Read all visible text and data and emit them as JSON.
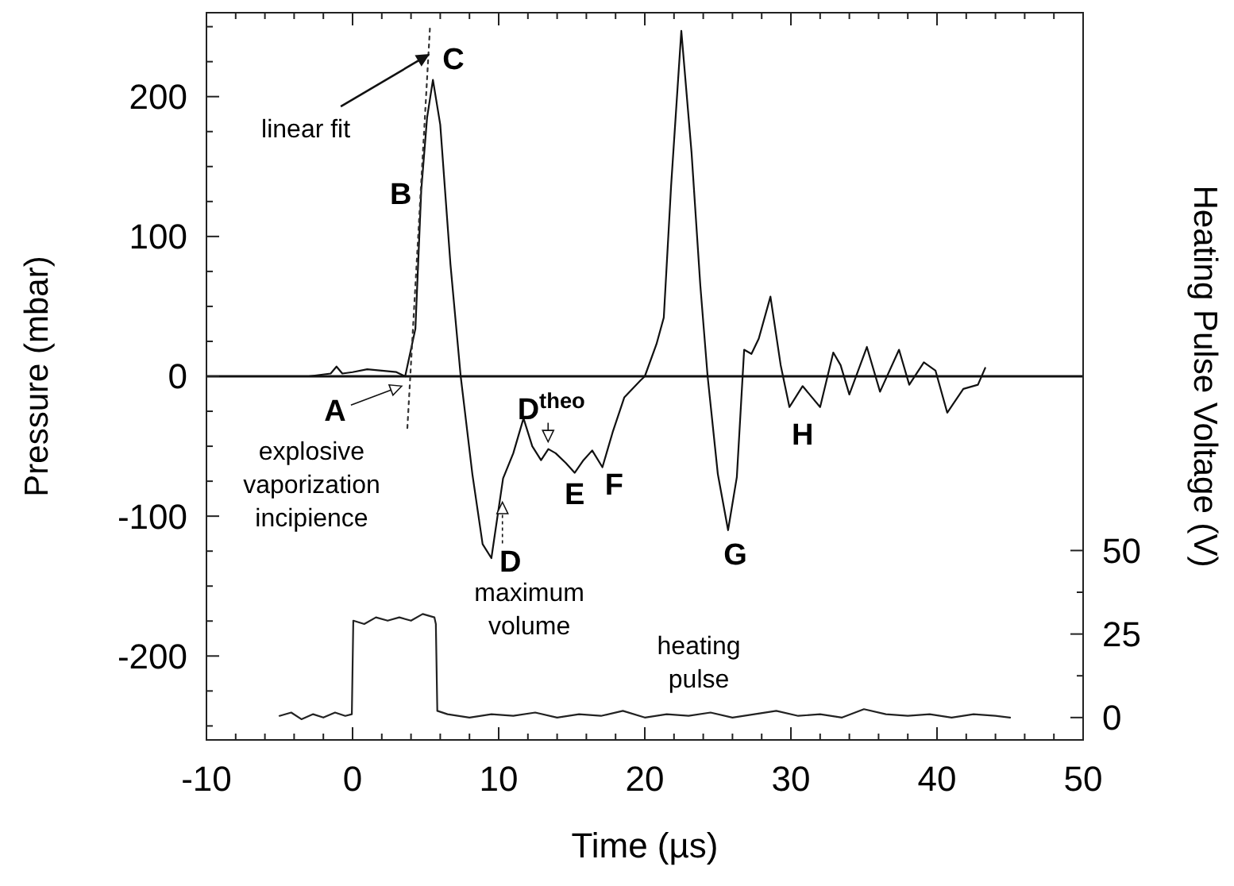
{
  "chart_data": {
    "type": "line",
    "xlabel": "Time (µs)",
    "ylabel": "Pressure (mbar)",
    "y2label": "Heating Pulse Voltage (V)",
    "xlim": [
      -10,
      50
    ],
    "xticks": [
      -10,
      {
        "value": -8,
        "label": null
      },
      {
        "value": -6,
        "label": null
      },
      {
        "value": -4,
        "label": null
      },
      {
        "value": -2,
        "label": null
      },
      0,
      {
        "value": 2,
        "label": null
      },
      {
        "value": 4,
        "label": null
      },
      {
        "value": 6,
        "label": null
      },
      {
        "value": 8,
        "label": null
      },
      10,
      {
        "value": 12,
        "label": null
      },
      {
        "value": 14,
        "label": null
      },
      {
        "value": 16,
        "label": null
      },
      {
        "value": 18,
        "label": null
      },
      20,
      {
        "value": 22,
        "label": null
      },
      {
        "value": 24,
        "label": null
      },
      {
        "value": 26,
        "label": null
      },
      {
        "value": 28,
        "label": null
      },
      30,
      {
        "value": 32,
        "label": null
      },
      {
        "value": 34,
        "label": null
      },
      {
        "value": 36,
        "label": null
      },
      {
        "value": 38,
        "label": null
      },
      40,
      {
        "value": 42,
        "label": null
      },
      {
        "value": 44,
        "label": null
      },
      {
        "value": 46,
        "label": null
      },
      {
        "value": 48,
        "label": null
      },
      50
    ],
    "ylim": [
      -260,
      260
    ],
    "yticks": [
      {
        "value": -250,
        "label": null
      },
      {
        "value": -225,
        "label": null
      },
      -200,
      {
        "value": -175,
        "label": null
      },
      {
        "value": -150,
        "label": null
      },
      {
        "value": -125,
        "label": null
      },
      -100,
      {
        "value": -75,
        "label": null
      },
      {
        "value": -50,
        "label": null
      },
      {
        "value": -25,
        "label": null
      },
      0,
      {
        "value": 25,
        "label": null
      },
      {
        "value": 50,
        "label": null
      },
      {
        "value": 75,
        "label": null
      },
      100,
      {
        "value": 125,
        "label": null
      },
      {
        "value": 150,
        "label": null
      },
      {
        "value": 175,
        "label": null
      },
      200,
      {
        "value": 225,
        "label": null
      },
      {
        "value": 250,
        "label": null
      }
    ],
    "y2lim": [
      -6.7,
      211
    ],
    "y2ticks": [
      0,
      {
        "value": 12.5,
        "label": null
      },
      25,
      {
        "value": 37.5,
        "label": null
      },
      50
    ],
    "grid": false,
    "series": [
      {
        "color": "#111111",
        "line_style": "solid",
        "x": [
          -5.1,
          -3,
          -1.5,
          -1.1,
          -0.7,
          0,
          1,
          2,
          3,
          3.6,
          4.3,
          4.7,
          5.1,
          5.5,
          6,
          6.7,
          7.4,
          8.2,
          8.9,
          9.5,
          10.3,
          11,
          11.7,
          12.3,
          12.9,
          13.4,
          13.9,
          14.6,
          15.2,
          15.8,
          16.4,
          17.1,
          17.8,
          18.6,
          19.7,
          20,
          20.8,
          21.3,
          21.8,
          22.5,
          23.2,
          23.8,
          24.3,
          25,
          25.7,
          26.3,
          26.8,
          27.3,
          27.8,
          28.6,
          29.3,
          29.9,
          30.8,
          32,
          32.9,
          33.4,
          34,
          35.2,
          36.1,
          37.4,
          38.1,
          39.1,
          39.9,
          40.7,
          41.8,
          42.8,
          43.3
        ],
        "values": [
          0,
          0,
          2,
          7,
          2,
          3,
          5,
          4,
          3,
          0,
          34,
          133,
          185,
          212,
          180,
          80,
          0,
          -70,
          -120,
          -130,
          -73,
          -55,
          -30,
          -50,
          -60,
          -52,
          -55,
          -62,
          -69,
          -60,
          -53,
          -65,
          -40,
          -15,
          -3,
          0,
          23,
          42,
          136,
          247,
          160,
          65,
          0,
          -70,
          -110,
          -72,
          19,
          16,
          27,
          57,
          8,
          -22,
          -7,
          -22,
          17,
          8,
          -13,
          21,
          -11,
          19,
          -6,
          10,
          4,
          -26,
          -9,
          -6,
          6
        ]
      },
      {
        "color": "#333333",
        "line_style": "dotted",
        "x": [
          3.75,
          5.3
        ],
        "values": [
          -37,
          250
        ]
      },
      {
        "color": "#222222",
        "line_style": "solid",
        "axis": "y2",
        "x": [
          -5,
          -4.2,
          -3.5,
          -2.7,
          -2,
          -1.2,
          -0.5,
          -0.05,
          0.05,
          0.8,
          1.6,
          2.4,
          3.2,
          4,
          4.8,
          5.6,
          5.7,
          5.8,
          6.5,
          8,
          9.5,
          11,
          12.5,
          14,
          15.5,
          17,
          18.5,
          20,
          21.5,
          23,
          24.5,
          26,
          27.5,
          29,
          30.5,
          32,
          33.5,
          35,
          36.5,
          38,
          39.5,
          41,
          42.5,
          44,
          45
        ],
        "values": [
          0.5,
          1.5,
          -0.5,
          1,
          0,
          1.5,
          0.5,
          1,
          29,
          28,
          30,
          29,
          30,
          29,
          31,
          30,
          28,
          2,
          1,
          0,
          1,
          0.5,
          1.5,
          0,
          1,
          0.5,
          2,
          0,
          1,
          0.5,
          1.5,
          0,
          1,
          2,
          0.5,
          1,
          0,
          2.5,
          1,
          0.5,
          1,
          0,
          1,
          0.5,
          0
        ]
      }
    ],
    "ref_lines": [
      {
        "axis": "y",
        "value": 0,
        "color": "#111111"
      }
    ],
    "annotations": [
      "C",
      {
        "text": "linear fit",
        "x": 5.2,
        "y": 230
      },
      "B",
      "A",
      "explosive\nvaporization\nincipience",
      "D$^{theo}$",
      "E",
      "F",
      "D",
      "maximum\nvolume",
      "G",
      "H",
      "heating\npulse"
    ]
  }
}
